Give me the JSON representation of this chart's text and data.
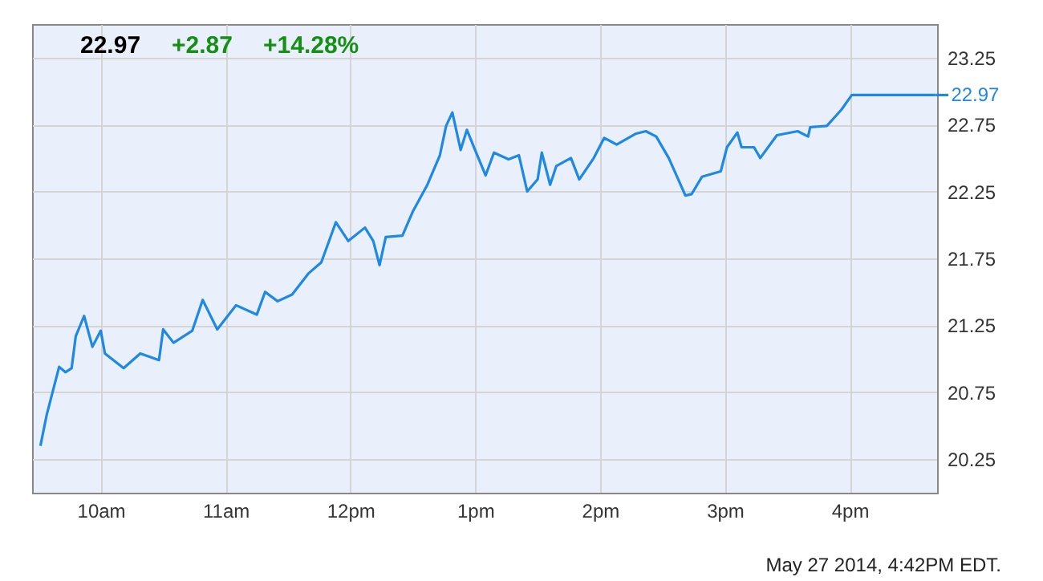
{
  "chart_data": {
    "type": "line",
    "x": [
      "2014-05-27T09:31",
      "2014-05-27T09:34",
      "2014-05-27T09:37",
      "2014-05-27T09:40",
      "2014-05-27T09:43",
      "2014-05-27T09:46",
      "2014-05-27T09:48",
      "2014-05-27T09:52",
      "2014-05-27T09:56",
      "2014-05-27T10:00",
      "2014-05-27T10:02",
      "2014-05-27T10:11",
      "2014-05-27T10:19",
      "2014-05-27T10:28",
      "2014-05-27T10:30",
      "2014-05-27T10:35",
      "2014-05-27T10:44",
      "2014-05-27T10:49",
      "2014-05-27T10:56",
      "2014-05-27T11:05",
      "2014-05-27T11:15",
      "2014-05-27T11:19",
      "2014-05-27T11:25",
      "2014-05-27T11:32",
      "2014-05-27T11:40",
      "2014-05-27T11:46",
      "2014-05-27T11:53",
      "2014-05-27T11:59",
      "2014-05-27T12:07",
      "2014-05-27T12:11",
      "2014-05-27T12:14",
      "2014-05-27T12:17",
      "2014-05-27T12:25",
      "2014-05-27T12:30",
      "2014-05-27T12:37",
      "2014-05-27T12:43",
      "2014-05-27T12:46",
      "2014-05-27T12:49",
      "2014-05-27T12:53",
      "2014-05-27T12:56",
      "2014-05-27T13:01",
      "2014-05-27T13:05",
      "2014-05-27T13:09",
      "2014-05-27T13:16",
      "2014-05-27T13:21",
      "2014-05-27T13:25",
      "2014-05-27T13:30",
      "2014-05-27T13:32",
      "2014-05-27T13:36",
      "2014-05-27T13:39",
      "2014-05-27T13:46",
      "2014-05-27T13:50",
      "2014-05-27T13:57",
      "2014-05-27T14:02",
      "2014-05-27T14:08",
      "2014-05-27T14:17",
      "2014-05-27T14:22",
      "2014-05-27T14:27",
      "2014-05-27T14:33",
      "2014-05-27T14:37",
      "2014-05-27T14:41",
      "2014-05-27T14:44",
      "2014-05-27T14:49",
      "2014-05-27T14:58",
      "2014-05-27T15:01",
      "2014-05-27T15:06",
      "2014-05-27T15:08",
      "2014-05-27T15:14",
      "2014-05-27T15:17",
      "2014-05-27T15:25",
      "2014-05-27T15:35",
      "2014-05-27T15:40",
      "2014-05-27T15:41",
      "2014-05-27T15:49",
      "2014-05-27T15:56",
      "2014-05-27T16:01",
      "2014-05-27T16:41"
    ],
    "series": [
      {
        "color": "#1e88e5",
        "values": [
          20.35,
          20.58,
          20.76,
          20.94,
          20.9,
          20.93,
          21.17,
          21.32,
          21.09,
          21.21,
          21.04,
          20.93,
          21.04,
          20.99,
          21.22,
          21.12,
          21.21,
          21.44,
          21.22,
          21.4,
          21.33,
          21.5,
          21.43,
          21.48,
          21.64,
          21.72,
          22.02,
          21.88,
          21.98,
          21.88,
          21.7,
          21.91,
          21.92,
          22.1,
          22.3,
          22.52,
          22.74,
          22.84,
          22.56,
          22.71,
          22.52,
          22.37,
          22.54,
          22.49,
          22.52,
          22.25,
          22.34,
          22.54,
          22.3,
          22.44,
          22.5,
          22.34,
          22.5,
          22.65,
          22.6,
          22.68,
          22.7,
          22.66,
          22.5,
          22.36,
          22.22,
          22.23,
          22.36,
          22.4,
          22.58,
          22.69,
          22.58,
          22.58,
          22.5,
          22.67,
          22.7,
          22.66,
          22.73,
          22.74,
          22.86,
          22.97,
          22.97
        ]
      }
    ],
    "xlim": [
      "2014-05-27T09:27",
      "2014-05-27T16:42"
    ],
    "xticks": [
      {
        "value": "2014-05-27T10:00",
        "label": "10am"
      },
      {
        "value": "2014-05-27T11:00",
        "label": "11am"
      },
      {
        "value": "2014-05-27T12:00",
        "label": "12pm"
      },
      {
        "value": "2014-05-27T13:00",
        "label": "1pm"
      },
      {
        "value": "2014-05-27T14:00",
        "label": "2pm"
      },
      {
        "value": "2014-05-27T15:00",
        "label": "3pm"
      },
      {
        "value": "2014-05-27T16:00",
        "label": "4pm"
      }
    ],
    "ylim": [
      20.0,
      23.5
    ],
    "yticks": [
      20.25,
      20.75,
      21.25,
      21.75,
      22.25,
      22.75,
      23.25
    ],
    "grid": true,
    "marker": "none",
    "annotations": [
      "22.97",
      "+2.87",
      "+14.28%",
      {
        "text": "22.97",
        "x": "2014-05-27T16:41",
        "y": 22.97
      },
      "May 27 2014, 4:42PM EDT."
    ]
  }
}
